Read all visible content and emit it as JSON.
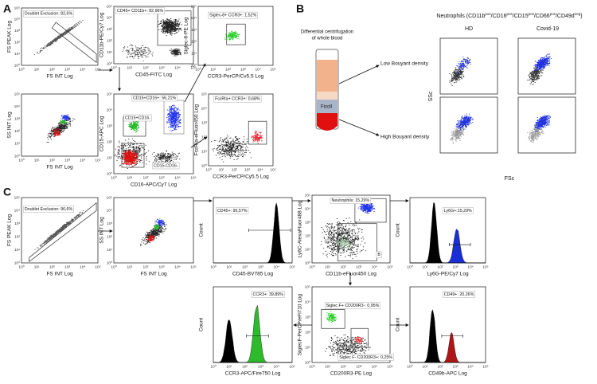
{
  "panel_a": {
    "label": "A",
    "plots": [
      {
        "x_label": "FS INT Log",
        "y_label": "FS PEAK Log",
        "gates": [
          "Doublet Exclusion: 82,6%"
        ]
      },
      {
        "x_label": "CD45-FITC Log",
        "y_label": "CD11b-PE/Cy7 Log",
        "gates": [
          "CD45+ CD11b+: 82,96%"
        ]
      },
      {
        "x_label": "CCR3-PerCP/Cv5.5 Log",
        "y_label": "Siglec-8-PE Log",
        "gates": [
          "Siglec-8+ CCR3+: 1,52%"
        ]
      },
      {
        "x_label": "FS INT Log",
        "y_label": "SS INT Log"
      },
      {
        "x_label": "CD16-APC/Cy7 Log",
        "y_label": "CD15-APC Log",
        "gates": [
          "CD15+CD16+: 56,21%",
          "CD15+CD16-",
          "CD15-CD16-"
        ]
      },
      {
        "x_label": "CCR3-PerCP/Cy5.5 Log",
        "y_label": "FcεRIa-eFluor450 Log",
        "gates": [
          "FcεRIa+ CCR3+: 0,68%"
        ]
      }
    ]
  },
  "panel_b": {
    "label": "B",
    "tube_caption": [
      "Differential centrifugation",
      "of whole blood"
    ],
    "ficoll": "Ficoll",
    "low": "Low Bouyant density",
    "high": "High Bouyant density",
    "title": [
      "Neutrophils (CD11b",
      "pos",
      "/CD16",
      "pos",
      "/CD15",
      "pos",
      "/CD66",
      "pos",
      "/CD49d",
      "neg",
      ")"
    ],
    "columns": [
      "HD",
      "Covid-19"
    ],
    "x_label": "FSc",
    "y_label": "SSc"
  },
  "panel_c": {
    "label": "C",
    "plots": [
      {
        "x_label": "FS INT Log",
        "y_label": "FS PEAK Log",
        "gates": [
          "Doublet Exclusion: 96,6%"
        ]
      },
      {
        "x_label": "FS INT Log",
        "y_label": "SS INT Log"
      },
      {
        "x_label": "CD45-BV785 Log",
        "y_label": "Count",
        "gates": [
          "CD45+: 95,57%"
        ]
      },
      {
        "x_label": "CD11b-eFluor450 Log",
        "y_label": "Ly6C-AlexaFluor488 Log",
        "gates": [
          "Neutrophils: 15,29%",
          "B"
        ]
      },
      {
        "x_label": "Ly6G-PE/Cy7 Log",
        "y_label": "Count",
        "gates": [
          "Ly6G+:15,29%"
        ]
      },
      {
        "x_label": "CCR3-APC/Fire750 Log",
        "y_label": "Count",
        "gates": [
          "CCR3+: 39,89%"
        ]
      },
      {
        "x_label": "CD200R3-PE Log",
        "y_label": "SiglecF-PerCP/eFl710 Log",
        "gates": [
          "Siglec F+ CD200R3-: 0,95%",
          "Siglec F- CD200R3+: 0,25%"
        ]
      },
      {
        "x_label": "CD49b-APC Log",
        "y_label": "Count",
        "gates": [
          "CD49+: 20,26%"
        ]
      }
    ]
  },
  "axis_ticks": [
    "10⁰",
    "10¹",
    "10²",
    "10³",
    "10⁴",
    "10⁵"
  ]
}
